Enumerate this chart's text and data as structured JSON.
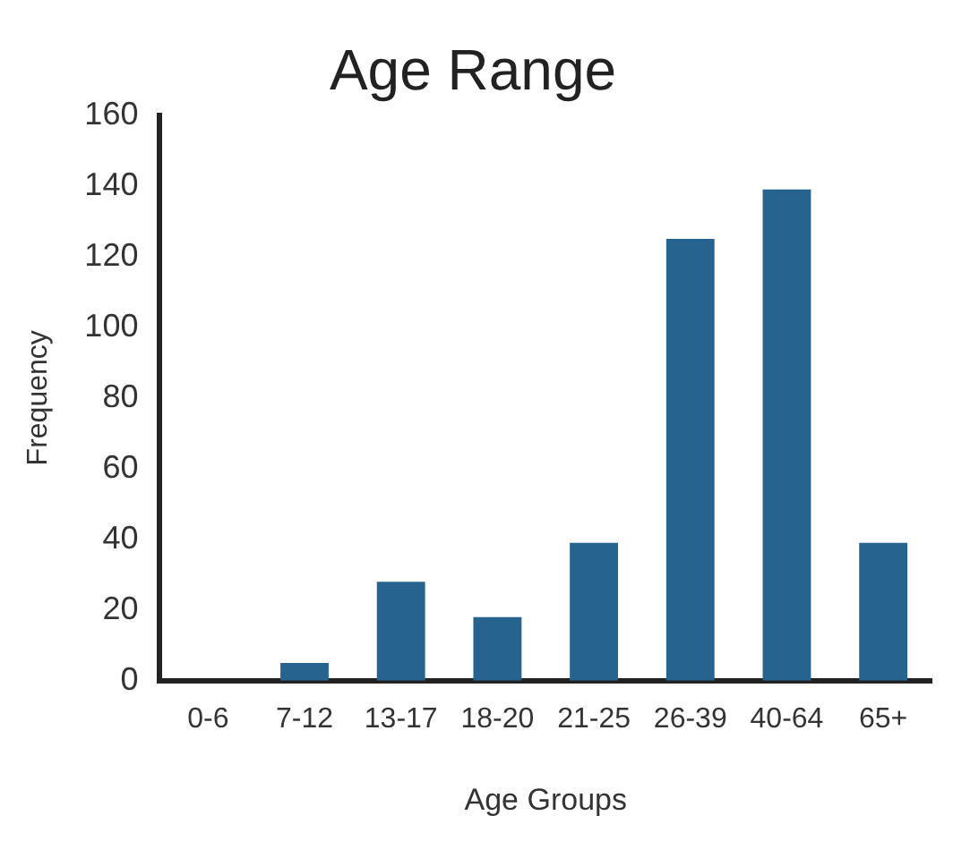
{
  "chart_data": {
    "type": "bar",
    "title": "Age Range",
    "xlabel": "Age Groups",
    "ylabel": "Frequency",
    "categories": [
      "0-6",
      "7-12",
      "13-17",
      "18-20",
      "21-25",
      "26-39",
      "40-64",
      "65+"
    ],
    "values": [
      0,
      5,
      28,
      18,
      39,
      125,
      139,
      39
    ],
    "color": "#26648f",
    "ylim": [
      0,
      160
    ],
    "yticks": [
      0,
      20,
      40,
      60,
      80,
      100,
      120,
      140,
      160
    ],
    "grid": false,
    "legend": false
  }
}
